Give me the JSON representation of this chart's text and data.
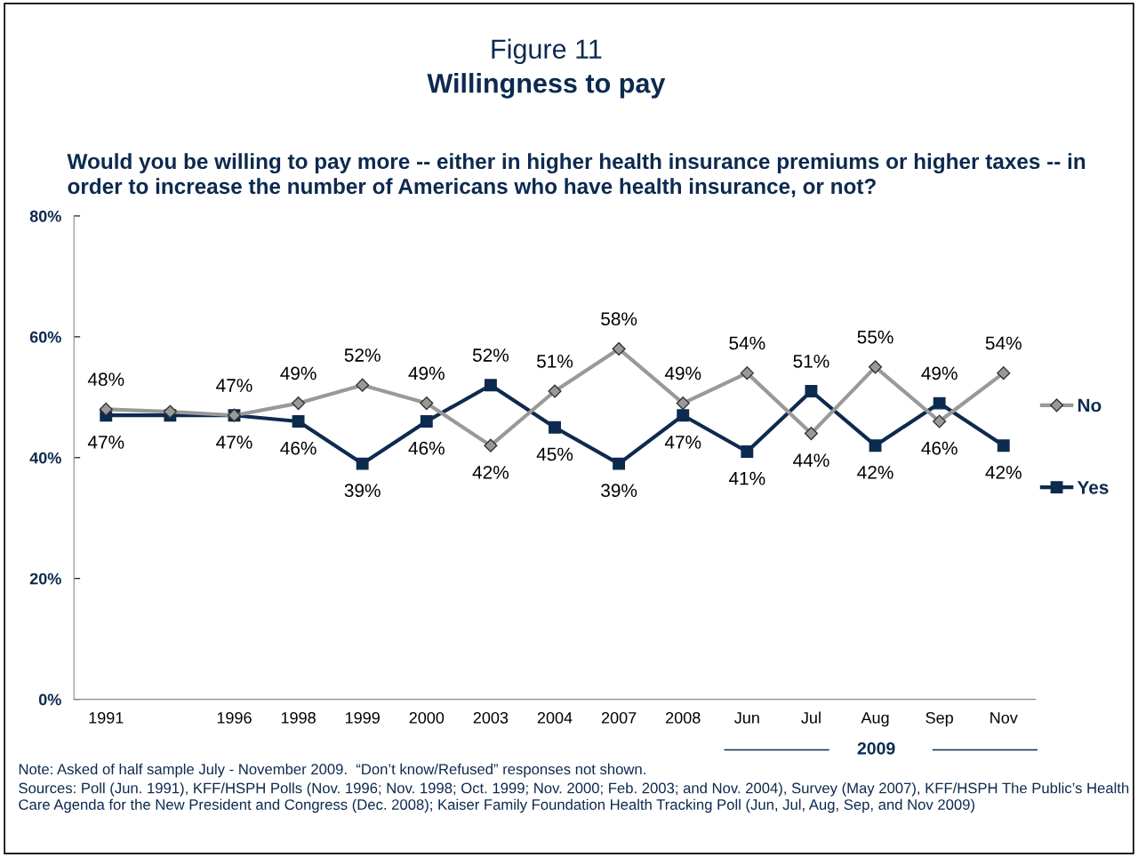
{
  "chart_data": {
    "type": "line",
    "title": "Figure 11",
    "subtitle": "Willingness to pay",
    "annotations": [
      "Would you be willing to pay more -- either in higher health insurance premiums or higher taxes -- in order to increase the number of Americans who have health insurance, or not?",
      "2009",
      "Note: Asked of half sample July - November 2009.  “Don’t know/Refused” responses not shown.",
      "Sources: Poll (Jun. 1991), KFF/HSPH Polls (Nov. 1996; Nov. 1998; Oct. 1999; Nov. 2000; Feb. 2003; and Nov. 2004), Survey (May 2007), KFF/HSPH The Public’s Health Care Agenda for the New President and Congress (Dec. 2008); Kaiser Family Foundation Health Tracking Poll (Jun, Jul, Aug, Sep, and Nov 2009)"
    ],
    "categories": [
      "1991",
      null,
      "1996",
      "1998",
      "1999",
      "2000",
      "2003",
      "2004",
      "2007",
      "2008",
      "Jun",
      "Jul",
      "Aug",
      "Sep",
      "Nov"
    ],
    "series": [
      {
        "name": "No",
        "color": "#999999",
        "marker": "diamond",
        "values": [
          48,
          47.6,
          47,
          49,
          52,
          49,
          42,
          51,
          58,
          49,
          54,
          44,
          55,
          46,
          54
        ],
        "value_labels": [
          "48%",
          null,
          "47%",
          "49%",
          "52%",
          "49%",
          "42%",
          "51%",
          "58%",
          "49%",
          "54%",
          "44%",
          "55%",
          "46%",
          "54%"
        ]
      },
      {
        "name": "Yes",
        "color": "#0d2a4f",
        "marker": "square",
        "values": [
          47,
          47,
          47,
          46,
          39,
          46,
          52,
          45,
          39,
          47,
          41,
          51,
          42,
          49,
          42
        ],
        "value_labels": [
          "47%",
          null,
          "47%",
          "46%",
          "39%",
          "46%",
          "52%",
          "45%",
          "39%",
          "47%",
          "41%",
          "51%",
          "42%",
          "49%",
          "42%"
        ]
      }
    ],
    "ylim": [
      0,
      80
    ],
    "yticks": [
      {
        "value": 0,
        "label": "0%"
      },
      {
        "value": 20,
        "label": "20%"
      },
      {
        "value": 40,
        "label": "40%"
      },
      {
        "value": 60,
        "label": "60%"
      },
      {
        "value": 80,
        "label": "80%"
      }
    ],
    "grid": false,
    "legend": "right",
    "line_style": "solid"
  }
}
